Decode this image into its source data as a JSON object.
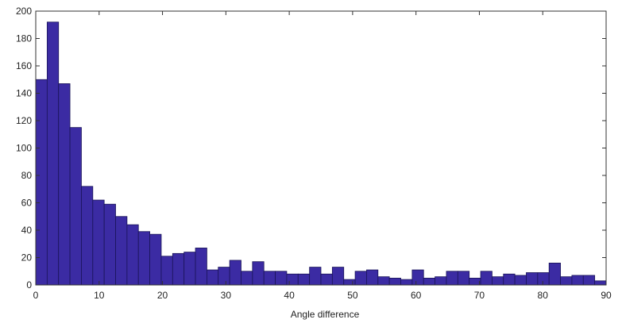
{
  "chart_data": {
    "type": "bar",
    "title": "",
    "xlabel": "Angle difference",
    "ylabel": "",
    "xlim": [
      0,
      90
    ],
    "ylim": [
      0,
      200
    ],
    "bin_width": 1.8,
    "x_ticks": [
      "0",
      "10",
      "20",
      "30",
      "40",
      "50",
      "60",
      "70",
      "80",
      "90"
    ],
    "y_ticks": [
      "0",
      "20",
      "40",
      "60",
      "80",
      "100",
      "120",
      "140",
      "160",
      "180",
      "200"
    ],
    "grid": false,
    "bar_color": "#3b2ba3",
    "bar_edge_color": "#1a1458",
    "values": [
      150,
      192,
      147,
      115,
      72,
      62,
      59,
      50,
      44,
      39,
      37,
      21,
      23,
      24,
      27,
      11,
      13,
      18,
      10,
      17,
      10,
      10,
      8,
      8,
      13,
      8,
      13,
      4,
      10,
      11,
      6,
      5,
      4,
      11,
      5,
      6,
      10,
      10,
      5,
      10,
      6,
      8,
      7,
      9,
      9,
      16,
      6,
      7,
      7,
      3
    ]
  }
}
